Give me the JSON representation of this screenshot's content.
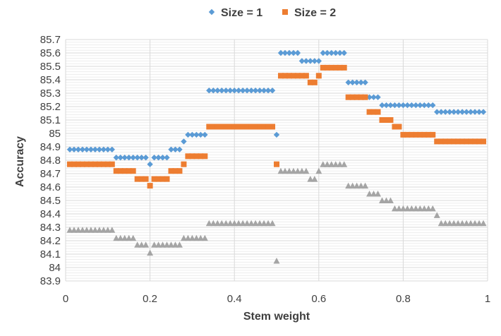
{
  "chart_data": {
    "type": "scatter",
    "title": "",
    "xlabel": "Stem weight",
    "ylabel": "Accuracy",
    "xlim": [
      0,
      1
    ],
    "ylim": [
      83.9,
      85.7
    ],
    "x_ticks": [
      "0",
      "0.2",
      "0.4",
      "0.6",
      "0.8",
      "1"
    ],
    "y_ticks": [
      "83.9",
      "84",
      "84.1",
      "84.2",
      "84.3",
      "84.4",
      "84.5",
      "84.6",
      "84.7",
      "84.8",
      "84.9",
      "85",
      "85.1",
      "85.2",
      "85.3",
      "85.4",
      "85.5",
      "85.6",
      "85.7"
    ],
    "grid": true,
    "legend_position": "top-center",
    "series": [
      {
        "name": "Size = 1",
        "marker": "diamond",
        "color": "#5B9BD5",
        "points": [
          [
            0.01,
            84.88
          ],
          [
            0.02,
            84.88
          ],
          [
            0.03,
            84.88
          ],
          [
            0.04,
            84.88
          ],
          [
            0.05,
            84.88
          ],
          [
            0.06,
            84.88
          ],
          [
            0.07,
            84.88
          ],
          [
            0.08,
            84.88
          ],
          [
            0.09,
            84.88
          ],
          [
            0.1,
            84.88
          ],
          [
            0.11,
            84.88
          ],
          [
            0.12,
            84.82
          ],
          [
            0.13,
            84.82
          ],
          [
            0.14,
            84.82
          ],
          [
            0.15,
            84.82
          ],
          [
            0.16,
            84.82
          ],
          [
            0.17,
            84.82
          ],
          [
            0.18,
            84.82
          ],
          [
            0.19,
            84.82
          ],
          [
            0.2,
            84.77
          ],
          [
            0.21,
            84.82
          ],
          [
            0.22,
            84.82
          ],
          [
            0.23,
            84.82
          ],
          [
            0.24,
            84.82
          ],
          [
            0.25,
            84.88
          ],
          [
            0.26,
            84.88
          ],
          [
            0.27,
            84.88
          ],
          [
            0.28,
            84.94
          ],
          [
            0.29,
            84.99
          ],
          [
            0.3,
            84.99
          ],
          [
            0.31,
            84.99
          ],
          [
            0.32,
            84.99
          ],
          [
            0.33,
            84.99
          ],
          [
            0.34,
            85.32
          ],
          [
            0.35,
            85.32
          ],
          [
            0.36,
            85.32
          ],
          [
            0.37,
            85.32
          ],
          [
            0.38,
            85.32
          ],
          [
            0.39,
            85.32
          ],
          [
            0.4,
            85.32
          ],
          [
            0.41,
            85.32
          ],
          [
            0.42,
            85.32
          ],
          [
            0.43,
            85.32
          ],
          [
            0.44,
            85.32
          ],
          [
            0.45,
            85.32
          ],
          [
            0.46,
            85.32
          ],
          [
            0.47,
            85.32
          ],
          [
            0.48,
            85.32
          ],
          [
            0.49,
            85.32
          ],
          [
            0.5,
            84.99
          ],
          [
            0.51,
            85.6
          ],
          [
            0.52,
            85.6
          ],
          [
            0.53,
            85.6
          ],
          [
            0.54,
            85.6
          ],
          [
            0.55,
            85.6
          ],
          [
            0.56,
            85.54
          ],
          [
            0.57,
            85.54
          ],
          [
            0.58,
            85.54
          ],
          [
            0.59,
            85.54
          ],
          [
            0.6,
            85.54
          ],
          [
            0.61,
            85.6
          ],
          [
            0.62,
            85.6
          ],
          [
            0.63,
            85.6
          ],
          [
            0.64,
            85.6
          ],
          [
            0.65,
            85.6
          ],
          [
            0.66,
            85.6
          ],
          [
            0.67,
            85.38
          ],
          [
            0.68,
            85.38
          ],
          [
            0.69,
            85.38
          ],
          [
            0.7,
            85.38
          ],
          [
            0.71,
            85.38
          ],
          [
            0.72,
            85.27
          ],
          [
            0.73,
            85.27
          ],
          [
            0.74,
            85.27
          ],
          [
            0.75,
            85.21
          ],
          [
            0.76,
            85.21
          ],
          [
            0.77,
            85.21
          ],
          [
            0.78,
            85.21
          ],
          [
            0.79,
            85.21
          ],
          [
            0.8,
            85.21
          ],
          [
            0.81,
            85.21
          ],
          [
            0.82,
            85.21
          ],
          [
            0.83,
            85.21
          ],
          [
            0.84,
            85.21
          ],
          [
            0.85,
            85.21
          ],
          [
            0.86,
            85.21
          ],
          [
            0.87,
            85.21
          ],
          [
            0.88,
            85.16
          ],
          [
            0.89,
            85.16
          ],
          [
            0.9,
            85.16
          ],
          [
            0.91,
            85.16
          ],
          [
            0.92,
            85.16
          ],
          [
            0.93,
            85.16
          ],
          [
            0.94,
            85.16
          ],
          [
            0.95,
            85.16
          ],
          [
            0.96,
            85.16
          ],
          [
            0.97,
            85.16
          ],
          [
            0.98,
            85.16
          ],
          [
            0.99,
            85.16
          ]
        ]
      },
      {
        "name": "Size = 2",
        "marker": "square",
        "color": "#ED7D31",
        "points": [
          [
            0.01,
            84.77
          ],
          [
            0.02,
            84.77
          ],
          [
            0.03,
            84.77
          ],
          [
            0.04,
            84.77
          ],
          [
            0.05,
            84.77
          ],
          [
            0.06,
            84.77
          ],
          [
            0.07,
            84.77
          ],
          [
            0.08,
            84.77
          ],
          [
            0.09,
            84.77
          ],
          [
            0.1,
            84.77
          ],
          [
            0.11,
            84.77
          ],
          [
            0.12,
            84.72
          ],
          [
            0.13,
            84.72
          ],
          [
            0.14,
            84.72
          ],
          [
            0.15,
            84.72
          ],
          [
            0.16,
            84.72
          ],
          [
            0.17,
            84.66
          ],
          [
            0.18,
            84.66
          ],
          [
            0.19,
            84.66
          ],
          [
            0.2,
            84.61
          ],
          [
            0.21,
            84.66
          ],
          [
            0.22,
            84.66
          ],
          [
            0.23,
            84.66
          ],
          [
            0.24,
            84.66
          ],
          [
            0.25,
            84.72
          ],
          [
            0.26,
            84.72
          ],
          [
            0.27,
            84.72
          ],
          [
            0.28,
            84.77
          ],
          [
            0.29,
            84.83
          ],
          [
            0.3,
            84.83
          ],
          [
            0.31,
            84.83
          ],
          [
            0.32,
            84.83
          ],
          [
            0.33,
            84.83
          ],
          [
            0.34,
            85.05
          ],
          [
            0.35,
            85.05
          ],
          [
            0.36,
            85.05
          ],
          [
            0.37,
            85.05
          ],
          [
            0.38,
            85.05
          ],
          [
            0.39,
            85.05
          ],
          [
            0.4,
            85.05
          ],
          [
            0.41,
            85.05
          ],
          [
            0.42,
            85.05
          ],
          [
            0.43,
            85.05
          ],
          [
            0.44,
            85.05
          ],
          [
            0.45,
            85.05
          ],
          [
            0.46,
            85.05
          ],
          [
            0.47,
            85.05
          ],
          [
            0.48,
            85.05
          ],
          [
            0.49,
            85.05
          ],
          [
            0.5,
            84.77
          ],
          [
            0.51,
            85.43
          ],
          [
            0.52,
            85.43
          ],
          [
            0.53,
            85.43
          ],
          [
            0.54,
            85.43
          ],
          [
            0.55,
            85.43
          ],
          [
            0.56,
            85.43
          ],
          [
            0.57,
            85.43
          ],
          [
            0.58,
            85.38
          ],
          [
            0.59,
            85.38
          ],
          [
            0.6,
            85.43
          ],
          [
            0.61,
            85.49
          ],
          [
            0.62,
            85.49
          ],
          [
            0.63,
            85.49
          ],
          [
            0.64,
            85.49
          ],
          [
            0.65,
            85.49
          ],
          [
            0.66,
            85.49
          ],
          [
            0.67,
            85.27
          ],
          [
            0.68,
            85.27
          ],
          [
            0.69,
            85.27
          ],
          [
            0.7,
            85.27
          ],
          [
            0.71,
            85.27
          ],
          [
            0.72,
            85.16
          ],
          [
            0.73,
            85.16
          ],
          [
            0.74,
            85.16
          ],
          [
            0.75,
            85.1
          ],
          [
            0.76,
            85.1
          ],
          [
            0.77,
            85.1
          ],
          [
            0.78,
            85.05
          ],
          [
            0.79,
            85.05
          ],
          [
            0.8,
            84.99
          ],
          [
            0.81,
            84.99
          ],
          [
            0.82,
            84.99
          ],
          [
            0.83,
            84.99
          ],
          [
            0.84,
            84.99
          ],
          [
            0.85,
            84.99
          ],
          [
            0.86,
            84.99
          ],
          [
            0.87,
            84.99
          ],
          [
            0.88,
            84.94
          ],
          [
            0.89,
            84.94
          ],
          [
            0.9,
            84.94
          ],
          [
            0.91,
            84.94
          ],
          [
            0.92,
            84.94
          ],
          [
            0.93,
            84.94
          ],
          [
            0.94,
            84.94
          ],
          [
            0.95,
            84.94
          ],
          [
            0.96,
            84.94
          ],
          [
            0.97,
            84.94
          ],
          [
            0.98,
            84.94
          ],
          [
            0.99,
            84.94
          ]
        ]
      },
      {
        "name": "",
        "marker": "triangle",
        "color": "#A5A5A5",
        "points": [
          [
            0.01,
            84.28
          ],
          [
            0.02,
            84.28
          ],
          [
            0.03,
            84.28
          ],
          [
            0.04,
            84.28
          ],
          [
            0.05,
            84.28
          ],
          [
            0.06,
            84.28
          ],
          [
            0.07,
            84.28
          ],
          [
            0.08,
            84.28
          ],
          [
            0.09,
            84.28
          ],
          [
            0.1,
            84.28
          ],
          [
            0.11,
            84.28
          ],
          [
            0.12,
            84.22
          ],
          [
            0.13,
            84.22
          ],
          [
            0.14,
            84.22
          ],
          [
            0.15,
            84.22
          ],
          [
            0.16,
            84.22
          ],
          [
            0.17,
            84.17
          ],
          [
            0.18,
            84.17
          ],
          [
            0.19,
            84.17
          ],
          [
            0.2,
            84.11
          ],
          [
            0.21,
            84.17
          ],
          [
            0.22,
            84.17
          ],
          [
            0.23,
            84.17
          ],
          [
            0.24,
            84.17
          ],
          [
            0.25,
            84.17
          ],
          [
            0.26,
            84.17
          ],
          [
            0.27,
            84.17
          ],
          [
            0.28,
            84.22
          ],
          [
            0.29,
            84.22
          ],
          [
            0.3,
            84.22
          ],
          [
            0.31,
            84.22
          ],
          [
            0.32,
            84.22
          ],
          [
            0.33,
            84.22
          ],
          [
            0.34,
            84.33
          ],
          [
            0.35,
            84.33
          ],
          [
            0.36,
            84.33
          ],
          [
            0.37,
            84.33
          ],
          [
            0.38,
            84.33
          ],
          [
            0.39,
            84.33
          ],
          [
            0.4,
            84.33
          ],
          [
            0.41,
            84.33
          ],
          [
            0.42,
            84.33
          ],
          [
            0.43,
            84.33
          ],
          [
            0.44,
            84.33
          ],
          [
            0.45,
            84.33
          ],
          [
            0.46,
            84.33
          ],
          [
            0.47,
            84.33
          ],
          [
            0.48,
            84.33
          ],
          [
            0.49,
            84.33
          ],
          [
            0.5,
            84.05
          ],
          [
            0.51,
            84.72
          ],
          [
            0.52,
            84.72
          ],
          [
            0.53,
            84.72
          ],
          [
            0.54,
            84.72
          ],
          [
            0.55,
            84.72
          ],
          [
            0.56,
            84.72
          ],
          [
            0.57,
            84.72
          ],
          [
            0.58,
            84.66
          ],
          [
            0.59,
            84.66
          ],
          [
            0.6,
            84.72
          ],
          [
            0.61,
            84.77
          ],
          [
            0.62,
            84.77
          ],
          [
            0.63,
            84.77
          ],
          [
            0.64,
            84.77
          ],
          [
            0.65,
            84.77
          ],
          [
            0.66,
            84.77
          ],
          [
            0.67,
            84.61
          ],
          [
            0.68,
            84.61
          ],
          [
            0.69,
            84.61
          ],
          [
            0.7,
            84.61
          ],
          [
            0.71,
            84.61
          ],
          [
            0.72,
            84.55
          ],
          [
            0.73,
            84.55
          ],
          [
            0.74,
            84.55
          ],
          [
            0.75,
            84.5
          ],
          [
            0.76,
            84.5
          ],
          [
            0.77,
            84.5
          ],
          [
            0.78,
            84.44
          ],
          [
            0.79,
            84.44
          ],
          [
            0.8,
            84.44
          ],
          [
            0.81,
            84.44
          ],
          [
            0.82,
            84.44
          ],
          [
            0.83,
            84.44
          ],
          [
            0.84,
            84.44
          ],
          [
            0.85,
            84.44
          ],
          [
            0.86,
            84.44
          ],
          [
            0.87,
            84.44
          ],
          [
            0.88,
            84.39
          ],
          [
            0.89,
            84.33
          ],
          [
            0.9,
            84.33
          ],
          [
            0.91,
            84.33
          ],
          [
            0.92,
            84.33
          ],
          [
            0.93,
            84.33
          ],
          [
            0.94,
            84.33
          ],
          [
            0.95,
            84.33
          ],
          [
            0.96,
            84.33
          ],
          [
            0.97,
            84.33
          ],
          [
            0.98,
            84.33
          ],
          [
            0.99,
            84.33
          ]
        ]
      }
    ]
  }
}
